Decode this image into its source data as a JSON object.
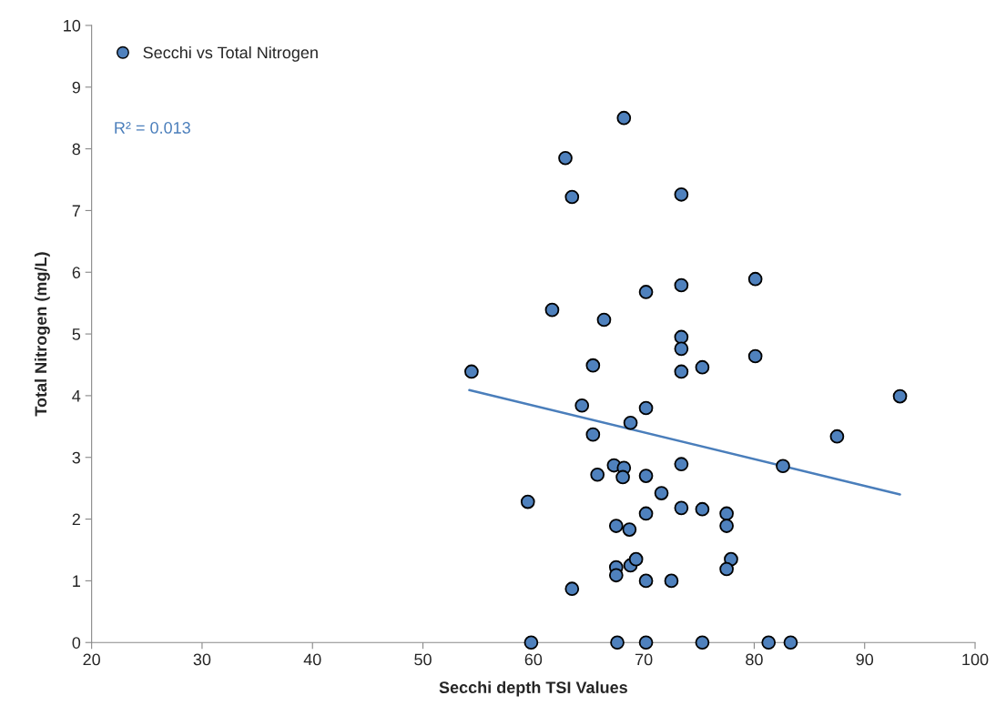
{
  "chart_data": {
    "type": "scatter",
    "xlabel": "Secchi depth TSI Values",
    "ylabel": "Total Nitrogen (mg/L)",
    "xlim": [
      20,
      100
    ],
    "xticks": [
      20,
      30,
      40,
      50,
      60,
      70,
      80,
      90,
      100
    ],
    "ylim": [
      0,
      10
    ],
    "yticks": [
      0,
      1,
      2,
      3,
      4,
      5,
      6,
      7,
      8,
      9,
      10
    ],
    "grid": false,
    "legend": "top left",
    "annotations": [
      "R² = 0.013"
    ],
    "series": [
      {
        "name": "Secchi vs Total Nitrogen",
        "marker": "circle",
        "color": "#4f81bd",
        "x": [
          54.4,
          59.5,
          61.7,
          62.9,
          63.5,
          63.5,
          64.4,
          65.4,
          65.4,
          65.8,
          66.4,
          67.3,
          67.5,
          67.5,
          67.5,
          68.2,
          68.2,
          68.1,
          68.7,
          68.8,
          68.8,
          69.3,
          70.2,
          70.2,
          70.2,
          70.2,
          70.2,
          71.6,
          72.5,
          73.4,
          73.4,
          73.4,
          73.4,
          73.4,
          73.4,
          73.4,
          75.3,
          75.3,
          77.5,
          77.5,
          77.9,
          77.5,
          80.1,
          80.1,
          82.6,
          87.5,
          93.2,
          59.8,
          67.6,
          70.2,
          75.3,
          81.3,
          83.3
        ],
        "values": [
          4.39,
          2.28,
          5.39,
          7.85,
          7.22,
          0.87,
          3.84,
          4.49,
          3.37,
          2.72,
          5.23,
          2.87,
          1.89,
          1.22,
          1.09,
          8.5,
          2.83,
          2.68,
          1.83,
          3.56,
          1.25,
          1.35,
          5.68,
          3.8,
          2.7,
          2.09,
          1.0,
          2.42,
          1.0,
          7.26,
          5.79,
          4.95,
          4.76,
          4.39,
          2.89,
          2.18,
          4.46,
          2.16,
          2.09,
          1.89,
          1.35,
          1.19,
          5.89,
          4.64,
          2.86,
          3.34,
          3.99,
          0,
          0,
          0,
          0,
          0,
          0
        ]
      },
      {
        "type": "line",
        "marker": "none",
        "color": "#4a7ebb",
        "x": [
          54.2,
          93.2
        ],
        "values": [
          4.09,
          2.4
        ]
      }
    ]
  }
}
